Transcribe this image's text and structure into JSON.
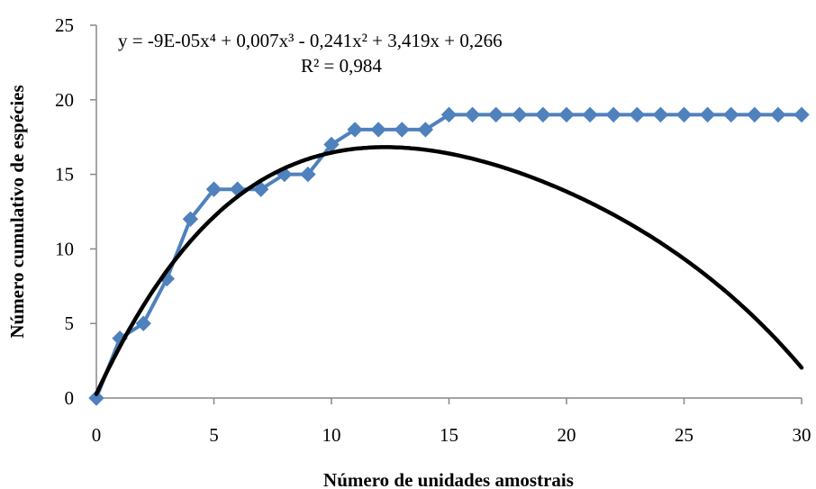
{
  "chart_data": {
    "type": "line",
    "title": "",
    "xlabel": "Número de unidades amostrais",
    "ylabel": "Número cumulativo de espécies",
    "xlim": [
      0,
      30
    ],
    "ylim": [
      0,
      25
    ],
    "xticks": [
      "0",
      "5",
      "10",
      "15",
      "20",
      "25",
      "30"
    ],
    "yticks": [
      "0",
      "5",
      "10",
      "15",
      "20",
      "25"
    ],
    "grid": false,
    "series": [
      {
        "values": [
          {
            "x": 0,
            "y": 0
          },
          {
            "x": 1,
            "y": 4
          },
          {
            "x": 2,
            "y": 5
          },
          {
            "x": 3,
            "y": 8
          },
          {
            "x": 4,
            "y": 12
          },
          {
            "x": 5,
            "y": 14
          },
          {
            "x": 6,
            "y": 14
          },
          {
            "x": 7,
            "y": 14
          },
          {
            "x": 8,
            "y": 15
          },
          {
            "x": 9,
            "y": 15
          },
          {
            "x": 10,
            "y": 17
          },
          {
            "x": 11,
            "y": 18
          },
          {
            "x": 12,
            "y": 18
          },
          {
            "x": 13,
            "y": 18
          },
          {
            "x": 14,
            "y": 18
          },
          {
            "x": 15,
            "y": 19
          },
          {
            "x": 16,
            "y": 19
          },
          {
            "x": 17,
            "y": 19
          },
          {
            "x": 18,
            "y": 19
          },
          {
            "x": 19,
            "y": 19
          },
          {
            "x": 20,
            "y": 19
          },
          {
            "x": 21,
            "y": 19
          },
          {
            "x": 22,
            "y": 19
          },
          {
            "x": 23,
            "y": 19
          },
          {
            "x": 24,
            "y": 19
          },
          {
            "x": 25,
            "y": 19
          },
          {
            "x": 26,
            "y": 19
          },
          {
            "x": 27,
            "y": 19
          },
          {
            "x": 28,
            "y": 19
          },
          {
            "x": 29,
            "y": 19
          },
          {
            "x": 30,
            "y": 19
          }
        ],
        "color": "#4f81bd",
        "marker": "diamond"
      }
    ],
    "trendline": {
      "type": "polynomial",
      "order": 4,
      "coefficients": [
        -9e-05,
        0.007,
        -0.241,
        3.419,
        0.266
      ],
      "color": "#000000",
      "equation_text": "y = -9E-05x⁴ + 0,007x³ - 0,241x² + 3,419x + 0,266",
      "r2_text": "R² = 0,984"
    }
  }
}
